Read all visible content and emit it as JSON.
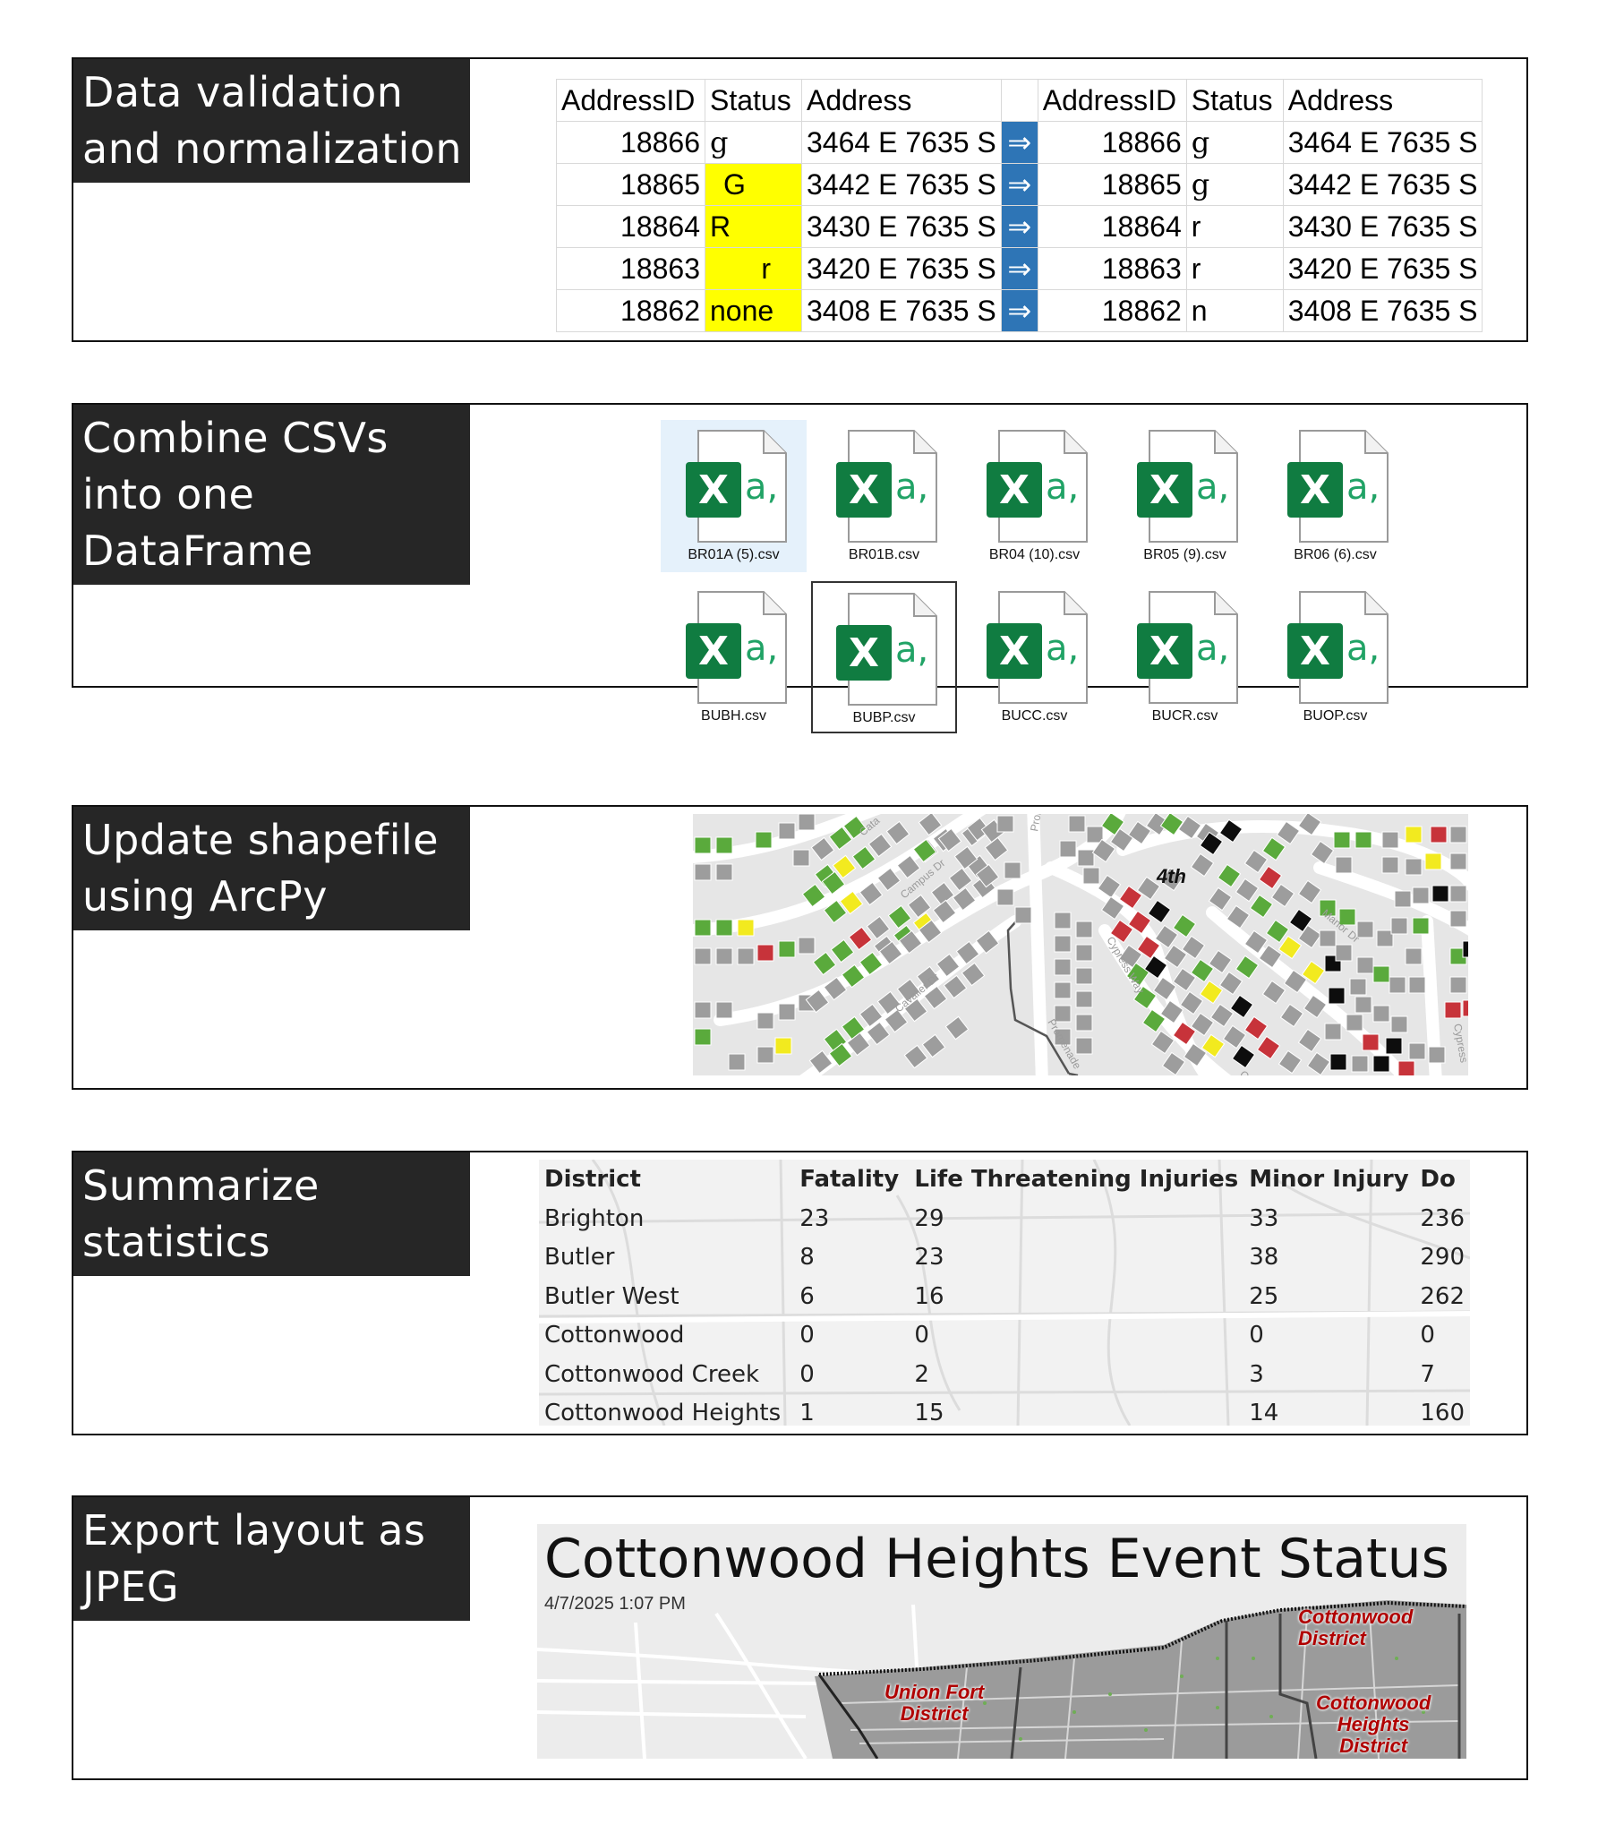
{
  "sections": [
    {
      "label": [
        "Data validation",
        "and normalization"
      ]
    },
    {
      "label": [
        "Combine CSVs",
        "into one",
        "DataFrame"
      ]
    },
    {
      "label": [
        "Update shapefile",
        "using ArcPy"
      ]
    },
    {
      "label": [
        "Summarize",
        "statistics"
      ]
    },
    {
      "label": [
        "Export layout as",
        "JPEG"
      ]
    }
  ],
  "validation": {
    "headers": [
      "AddressID",
      "Status",
      "Address",
      "AddressID",
      "Status",
      "Address"
    ],
    "arrow": "⇒",
    "rows": [
      {
        "id": "18866",
        "status": "g",
        "address": "3464 E 7635 S",
        "id2": "18866",
        "status2": "g",
        "address2": "3464 E 7635 S"
      },
      {
        "id": "18865",
        "status": "G",
        "address": "3442 E 7635 S",
        "id2": "18865",
        "status2": "g",
        "address2": "3442 E 7635 S"
      },
      {
        "id": "18864",
        "status": "R",
        "address": "3430 E 7635 S",
        "id2": "18864",
        "status2": "r",
        "address2": "3430 E 7635 S"
      },
      {
        "id": "18863",
        "status": "r",
        "address": "3420 E 7635 S",
        "id2": "18863",
        "status2": "r",
        "address2": "3420 E 7635 S"
      },
      {
        "id": "18862",
        "status": "none",
        "address": "3408 E 7635 S",
        "id2": "18862",
        "status2": "n",
        "address2": "3408 E 7635 S"
      }
    ]
  },
  "csv_files": [
    "BR01A (5).csv",
    "BR01B.csv",
    "BR04 (10).csv",
    "BR05 (9).csv",
    "BR06 (6).csv",
    "BUBH.csv",
    "BUBP.csv",
    "BUCC.csv",
    "BUCR.csv",
    "BUOP.csv"
  ],
  "map": {
    "street_labels": [
      "Cata",
      "Campus Dr",
      "Cavalier Dr",
      "Prom",
      "Promenade",
      "Cypress Way",
      "Manor Dr",
      "Cypress",
      "Cyp"
    ],
    "region_label": "4th",
    "status_colors": {
      "green": "#5aaa3c",
      "gray": "#9d9d9d",
      "yellow": "#f2ea1f",
      "red": "#c7333a",
      "black": "#0d0d0d"
    }
  },
  "stats": {
    "headers": [
      "District",
      "Fatality",
      "Life Threatening Injuries",
      "Minor Injury",
      "Do"
    ],
    "rows": [
      [
        "Brighton",
        "23",
        "29",
        "33",
        "236"
      ],
      [
        "Butler",
        "8",
        "23",
        "38",
        "290"
      ],
      [
        "Butler West",
        "6",
        "16",
        "25",
        "262"
      ],
      [
        "Cottonwood",
        "0",
        "0",
        "0",
        "0"
      ],
      [
        "Cottonwood Creek",
        "0",
        "2",
        "3",
        "7"
      ],
      [
        "Cottonwood Heights",
        "1",
        "15",
        "14",
        "160"
      ]
    ]
  },
  "layout_export": {
    "title": "Cottonwood Heights Event Status",
    "date": "4/7/2025 1:07 PM",
    "district_labels": {
      "union_fort": [
        "Union Fort",
        "District"
      ],
      "cottonwood": [
        "Cottonwood",
        "District"
      ],
      "cottonwood_heights": [
        "Cottonwood",
        "Heights",
        "District"
      ]
    }
  }
}
